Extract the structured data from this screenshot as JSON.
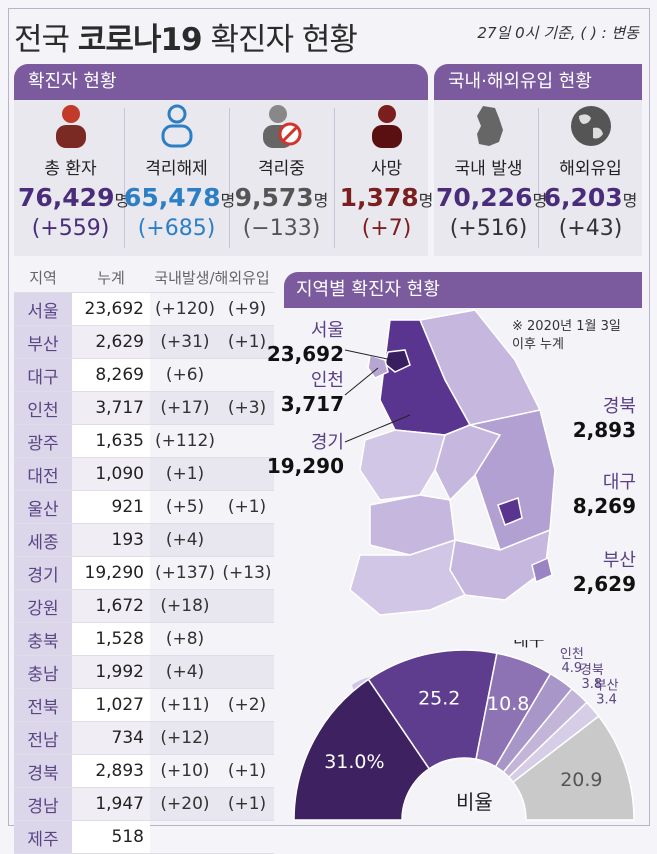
{
  "header": {
    "title_prefix": "전국 ",
    "title_bold": "코로나19",
    "title_suffix": " 확진자 현황",
    "basis": "27일 0시 기준, ( ) : 변동"
  },
  "confirmed": {
    "panel_title": "확진자 현황",
    "items": [
      {
        "label": "총 환자",
        "value": "76,429",
        "unit": "명",
        "change": "(+559)",
        "color": "#4a2d7a"
      },
      {
        "label": "격리해제",
        "value": "65,478",
        "unit": "명",
        "change": "(+685)",
        "color": "#2c7fc4"
      },
      {
        "label": "격리중",
        "value": "9,573",
        "unit": "명",
        "change": "(−133)",
        "color": "#555555"
      },
      {
        "label": "사망",
        "value": "1,378",
        "unit": "명",
        "change": "(+7)",
        "color": "#7a1e1e"
      }
    ]
  },
  "inflow": {
    "panel_title": "국내·해외유입 현황",
    "items": [
      {
        "label": "국내 발생",
        "value": "70,226",
        "unit": "명",
        "change": "(+516)",
        "color": "#4a2d7a"
      },
      {
        "label": "해외유입",
        "value": "6,203",
        "unit": "명",
        "change": "(+43)",
        "color": "#4a2d7a"
      }
    ]
  },
  "table": {
    "headers": [
      "지역",
      "누계",
      "국내발생/해외유입"
    ],
    "rows": [
      {
        "region": "서울",
        "total": "23,692",
        "domestic": "(+120)",
        "overseas": "(+9)"
      },
      {
        "region": "부산",
        "total": "2,629",
        "domestic": "(+31)",
        "overseas": "(+1)"
      },
      {
        "region": "대구",
        "total": "8,269",
        "domestic": "(+6)",
        "overseas": ""
      },
      {
        "region": "인천",
        "total": "3,717",
        "domestic": "(+17)",
        "overseas": "(+3)"
      },
      {
        "region": "광주",
        "total": "1,635",
        "domestic": "(+112)",
        "overseas": ""
      },
      {
        "region": "대전",
        "total": "1,090",
        "domestic": "(+1)",
        "overseas": ""
      },
      {
        "region": "울산",
        "total": "921",
        "domestic": "(+5)",
        "overseas": "(+1)"
      },
      {
        "region": "세종",
        "total": "193",
        "domestic": "(+4)",
        "overseas": ""
      },
      {
        "region": "경기",
        "total": "19,290",
        "domestic": "(+137)",
        "overseas": "(+13)"
      },
      {
        "region": "강원",
        "total": "1,672",
        "domestic": "(+18)",
        "overseas": ""
      },
      {
        "region": "충북",
        "total": "1,528",
        "domestic": "(+8)",
        "overseas": ""
      },
      {
        "region": "충남",
        "total": "1,992",
        "domestic": "(+4)",
        "overseas": ""
      },
      {
        "region": "전북",
        "total": "1,027",
        "domestic": "(+11)",
        "overseas": "(+2)"
      },
      {
        "region": "전남",
        "total": "734",
        "domestic": "(+12)",
        "overseas": ""
      },
      {
        "region": "경북",
        "total": "2,893",
        "domestic": "(+10)",
        "overseas": "(+1)"
      },
      {
        "region": "경남",
        "total": "1,947",
        "domestic": "(+20)",
        "overseas": "(+1)"
      },
      {
        "region": "제주",
        "total": "518",
        "domestic": "",
        "overseas": ""
      }
    ]
  },
  "map": {
    "panel_title": "지역별 확진자 현황",
    "note_line1": "※ 2020년 1월 3일",
    "note_line2": "이후 누계",
    "labels": {
      "seoul": {
        "name": "서울",
        "value": "23,692"
      },
      "incheon": {
        "name": "인천",
        "value": "3,717"
      },
      "gyeonggi": {
        "name": "경기",
        "value": "19,290"
      },
      "gyeongbuk": {
        "name": "경북",
        "value": "2,893"
      },
      "daegu": {
        "name": "대구",
        "value": "8,269"
      },
      "busan": {
        "name": "부산",
        "value": "2,629"
      }
    }
  },
  "chart_data": {
    "type": "pie",
    "title": "비율",
    "series": [
      {
        "name": "서울",
        "value": 31.0,
        "label": "31.0%",
        "color": "#3d2160"
      },
      {
        "name": "경기",
        "value": 25.2,
        "label": "25.2",
        "color": "#5e3d8e"
      },
      {
        "name": "대구",
        "value": 10.8,
        "label": "10.8",
        "color": "#8d73b3"
      },
      {
        "name": "인천",
        "value": 4.9,
        "label": "4.9",
        "color": "#a996c8"
      },
      {
        "name": "경북",
        "value": 3.8,
        "label": "3.8",
        "color": "#c2b5d8"
      },
      {
        "name": "부산",
        "value": 3.4,
        "label": "3.4",
        "color": "#d6cde6"
      },
      {
        "name": "",
        "value": 20.9,
        "label": "20.9",
        "color": "#c9c9c9"
      }
    ]
  }
}
